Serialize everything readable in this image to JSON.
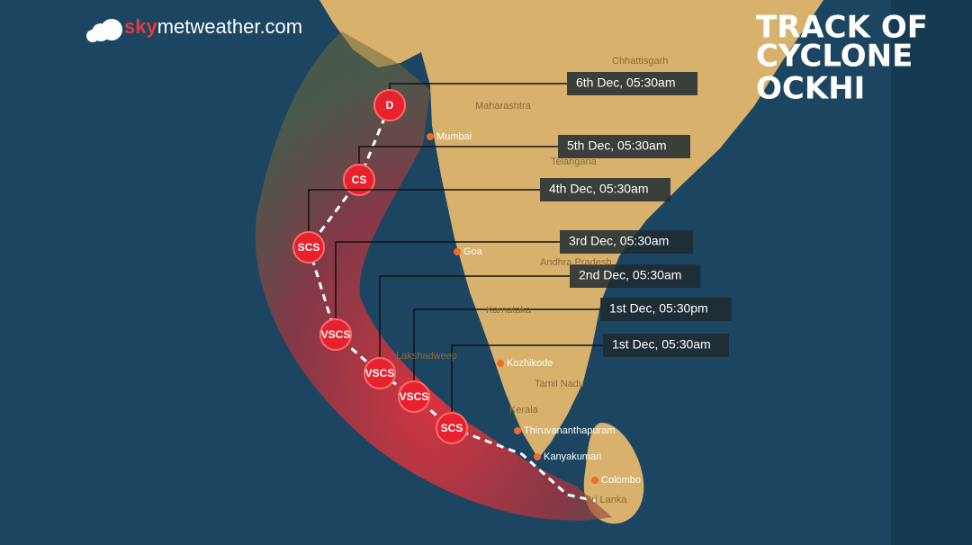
{
  "logo": {
    "sky": "sky",
    "rest": "metweather.com"
  },
  "title": [
    "TRACK OF",
    "CYCLONE",
    "OCKHI"
  ],
  "track": [
    {
      "category": "D",
      "date": "6th Dec, 05:30am"
    },
    {
      "category": "CS",
      "date": "5th Dec, 05:30am"
    },
    {
      "category": "SCS",
      "date": "4th Dec, 05:30am"
    },
    {
      "category": "VSCS",
      "date": "3rd Dec, 05:30am"
    },
    {
      "category": "VSCS",
      "date": "2nd Dec, 05:30am"
    },
    {
      "category": "VSCS",
      "date": "1st Dec, 05:30pm"
    },
    {
      "category": "SCS",
      "date": "1st Dec, 05:30am"
    }
  ],
  "places": [
    "Chhattisgarh",
    "Maharashtra",
    "Mumbai",
    "Telangana",
    "Goa",
    "Andhra Pradesh",
    "Karnataka",
    "Lakshadweep",
    "Kozhikode",
    "Tamil Nadu",
    "Kerala",
    "Thiruvananthapuram",
    "Kanyakumari",
    "Colombo",
    "Sri Lanka"
  ]
}
